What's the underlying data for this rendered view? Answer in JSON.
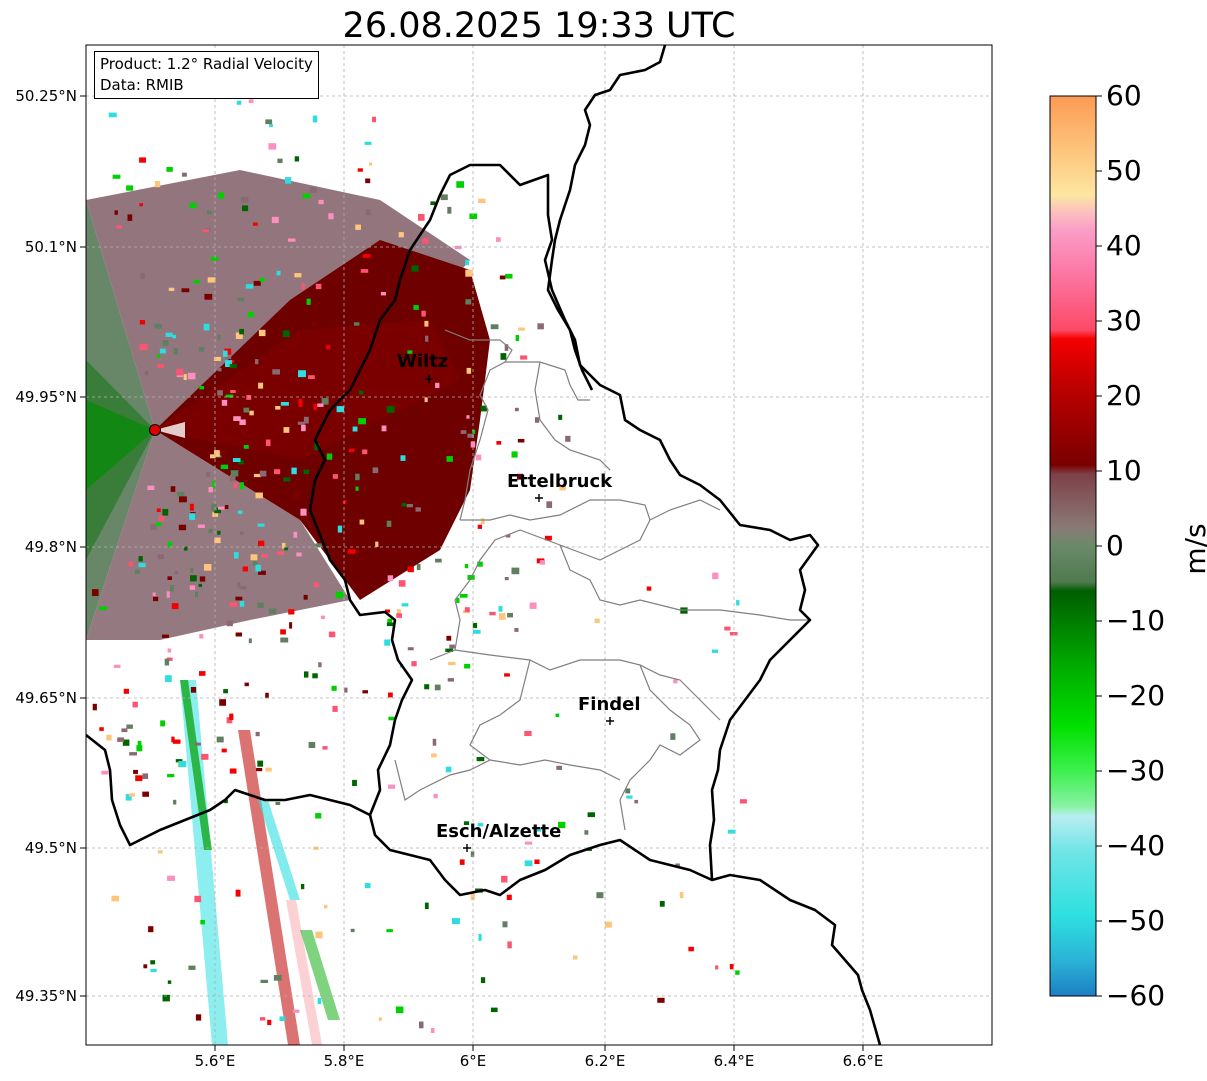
{
  "title": "26.08.2025 19:33 UTC",
  "info": {
    "product": "Product: 1.2° Radial Velocity",
    "data": "Data: RMIB"
  },
  "map": {
    "lon_range": [
      5.4,
      6.8
    ],
    "lat_range": [
      49.3,
      50.3
    ],
    "radar_site": {
      "lon": 5.505,
      "lat": 49.915,
      "marker": "red-circle"
    },
    "lat_ticks": [
      "50.25°N",
      "50.1°N",
      "49.95°N",
      "49.8°N",
      "49.65°N",
      "49.5°N",
      "49.35°N"
    ],
    "lon_ticks": [
      "5.6°E",
      "5.8°E",
      "6°E",
      "6.2°E",
      "6.4°E",
      "6.6°E"
    ],
    "grid": true,
    "cities": [
      {
        "name": "Wiltz",
        "lon": 5.93,
        "lat": 49.968
      },
      {
        "name": "Ettelbruck",
        "lon": 6.1,
        "lat": 49.848
      },
      {
        "name": "Findel",
        "lon": 6.21,
        "lat": 49.626
      },
      {
        "name": "Esch/Alzette",
        "lon": 5.99,
        "lat": 49.499
      }
    ]
  },
  "colorbar": {
    "label": "m/s",
    "range": [
      -60,
      60
    ],
    "ticks": [
      "60",
      "50",
      "40",
      "30",
      "20",
      "10",
      "0",
      "−10",
      "−20",
      "−30",
      "−40",
      "−50",
      "−60"
    ],
    "colors": {
      "orange": "#fd9a55",
      "light_orange": "#fdc67c",
      "pink": "#fb8fc0",
      "red_pink": "#fc5571",
      "red": "#f50000",
      "dark_red": "#7a0000",
      "mauve": "#8a6a72",
      "grey_green": "#607f60",
      "dark_green": "#006400",
      "green": "#00d000",
      "light_green": "#7ef08a",
      "pale_cyan": "#b8eef2",
      "cyan": "#2edde0",
      "blue": "#1e7fc3"
    }
  }
}
